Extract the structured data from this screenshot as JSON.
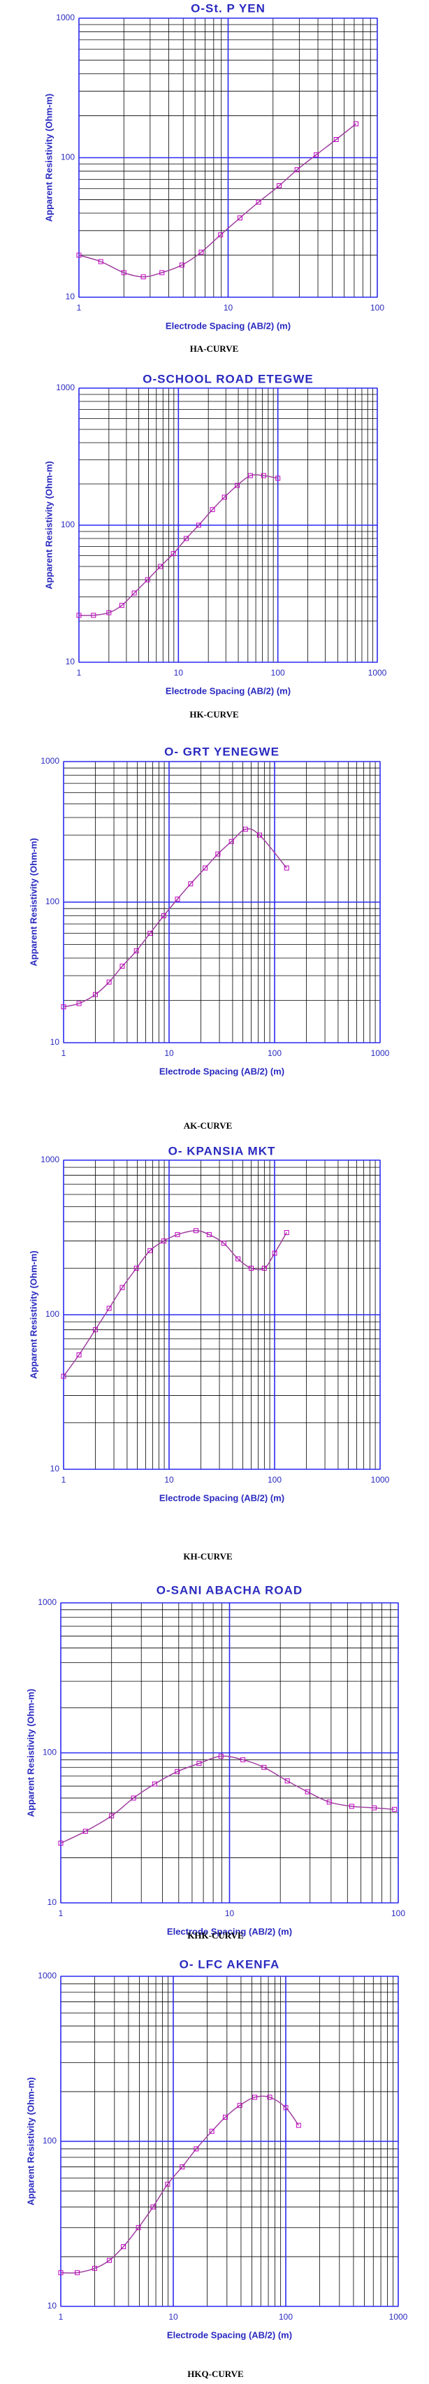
{
  "chart_data": [
    {
      "type": "scatter",
      "title": "O-St. P YEN",
      "caption": "HA-CURVE",
      "x_label": "Electrode Spacing (AB/2) (m)",
      "y_label": "Apparent Resistivity (Ohm-m)",
      "x": [
        1,
        1.4,
        2,
        2.7,
        3.6,
        4.9,
        6.6,
        8.9,
        12,
        16,
        22,
        29,
        39,
        53,
        72
      ],
      "values": [
        20,
        18,
        15,
        14,
        15,
        17,
        21,
        28,
        37,
        48,
        63,
        82,
        105,
        135,
        175
      ],
      "xlim": [
        1,
        100
      ],
      "ylim": [
        10,
        1000
      ],
      "xticks": [
        1,
        10,
        100
      ],
      "yticks": [
        10,
        100,
        1000
      ],
      "xscale": "log",
      "yscale": "log",
      "grid": true,
      "marker_color": "#c000c0",
      "curve_color": "#a040a0"
    },
    {
      "type": "scatter",
      "title": "O-SCHOOL ROAD ETEGWE",
      "caption": "HK-CURVE",
      "x_label": "Electrode Spacing (AB/2) (m)",
      "y_label": "Apparent Resistivity (Ohm-m)",
      "x": [
        1,
        1.4,
        2,
        2.7,
        3.6,
        4.9,
        6.6,
        8.9,
        12,
        16,
        22,
        29,
        39,
        53,
        72,
        100
      ],
      "values": [
        22,
        22,
        23,
        26,
        32,
        40,
        50,
        62,
        80,
        100,
        130,
        160,
        195,
        230,
        230,
        220
      ],
      "xlim": [
        1,
        1000
      ],
      "ylim": [
        10,
        1000
      ],
      "xticks": [
        1,
        10,
        100,
        1000
      ],
      "yticks": [
        10,
        100,
        1000
      ],
      "xscale": "log",
      "yscale": "log",
      "grid": true,
      "marker_color": "#c000c0",
      "curve_color": "#a040a0"
    },
    {
      "type": "scatter",
      "title": "O- GRT YENEGWE",
      "caption": "AK-CURVE",
      "x_label": "Electrode Spacing (AB/2) (m)",
      "y_label": "Apparent Resistivity (Ohm-m)",
      "x": [
        1,
        1.4,
        2,
        2.7,
        3.6,
        4.9,
        6.6,
        8.9,
        12,
        16,
        22,
        29,
        39,
        53,
        72,
        130
      ],
      "values": [
        18,
        19,
        22,
        27,
        35,
        45,
        60,
        80,
        105,
        135,
        175,
        220,
        270,
        330,
        300,
        175
      ],
      "xlim": [
        1,
        1000
      ],
      "ylim": [
        10,
        1000
      ],
      "xticks": [
        1,
        10,
        100,
        1000
      ],
      "yticks": [
        10,
        100,
        1000
      ],
      "xscale": "log",
      "yscale": "log",
      "grid": true,
      "marker_color": "#c000c0",
      "curve_color": "#a040a0"
    },
    {
      "type": "scatter",
      "title": "O- KPANSIA MKT",
      "caption": "KH-CURVE",
      "x_label": "Electrode Spacing (AB/2) (m)",
      "y_label": "Apparent Resistivity (Ohm-m)",
      "x": [
        1,
        1.4,
        2,
        2.7,
        3.6,
        4.9,
        6.6,
        8.9,
        12,
        18,
        24,
        33,
        45,
        60,
        80,
        100,
        130
      ],
      "values": [
        40,
        55,
        80,
        110,
        150,
        200,
        260,
        300,
        330,
        350,
        330,
        290,
        230,
        200,
        200,
        250,
        340
      ],
      "xlim": [
        1,
        1000
      ],
      "ylim": [
        10,
        1000
      ],
      "xticks": [
        1,
        10,
        100,
        1000
      ],
      "yticks": [
        10,
        100,
        1000
      ],
      "xscale": "log",
      "yscale": "log",
      "grid": true,
      "marker_color": "#c000c0",
      "curve_color": "#a040a0"
    },
    {
      "type": "scatter",
      "title": "O-SANI ABACHA ROAD",
      "caption": "KHK-CURVE",
      "x_label": "Electrode Spacing (AB/2) (m)",
      "y_label": "Apparent Resistivity (Ohm-m)",
      "x": [
        1,
        1.4,
        2,
        2.7,
        3.6,
        4.9,
        6.6,
        8.9,
        12,
        16,
        22,
        29,
        39,
        53,
        72,
        95
      ],
      "values": [
        25,
        30,
        38,
        50,
        62,
        75,
        85,
        95,
        90,
        80,
        65,
        55,
        47,
        44,
        43,
        42
      ],
      "xlim": [
        1,
        100
      ],
      "ylim": [
        10,
        1000
      ],
      "xticks": [
        1,
        10,
        100
      ],
      "yticks": [
        10,
        100,
        1000
      ],
      "xscale": "log",
      "yscale": "log",
      "grid": true,
      "marker_color": "#c000c0",
      "curve_color": "#a040a0"
    },
    {
      "type": "scatter",
      "title": "O- LFC AKENFA",
      "caption": "HKQ-CURVE",
      "x_label": "Electrode Spacing (AB/2) (m)",
      "y_label": "Apparent Resistivity (Ohm-m)",
      "x": [
        1,
        1.4,
        2,
        2.7,
        3.6,
        4.9,
        6.6,
        8.9,
        12,
        16,
        22,
        29,
        39,
        53,
        72,
        100,
        130
      ],
      "values": [
        16,
        16,
        17,
        19,
        23,
        30,
        40,
        55,
        70,
        90,
        115,
        140,
        165,
        185,
        185,
        160,
        125
      ],
      "xlim": [
        1,
        1000
      ],
      "ylim": [
        10,
        1000
      ],
      "xticks": [
        1,
        10,
        100,
        1000
      ],
      "yticks": [
        10,
        100,
        1000
      ],
      "xscale": "log",
      "yscale": "log",
      "grid": true,
      "marker_color": "#c000c0",
      "curve_color": "#a040a0"
    }
  ]
}
